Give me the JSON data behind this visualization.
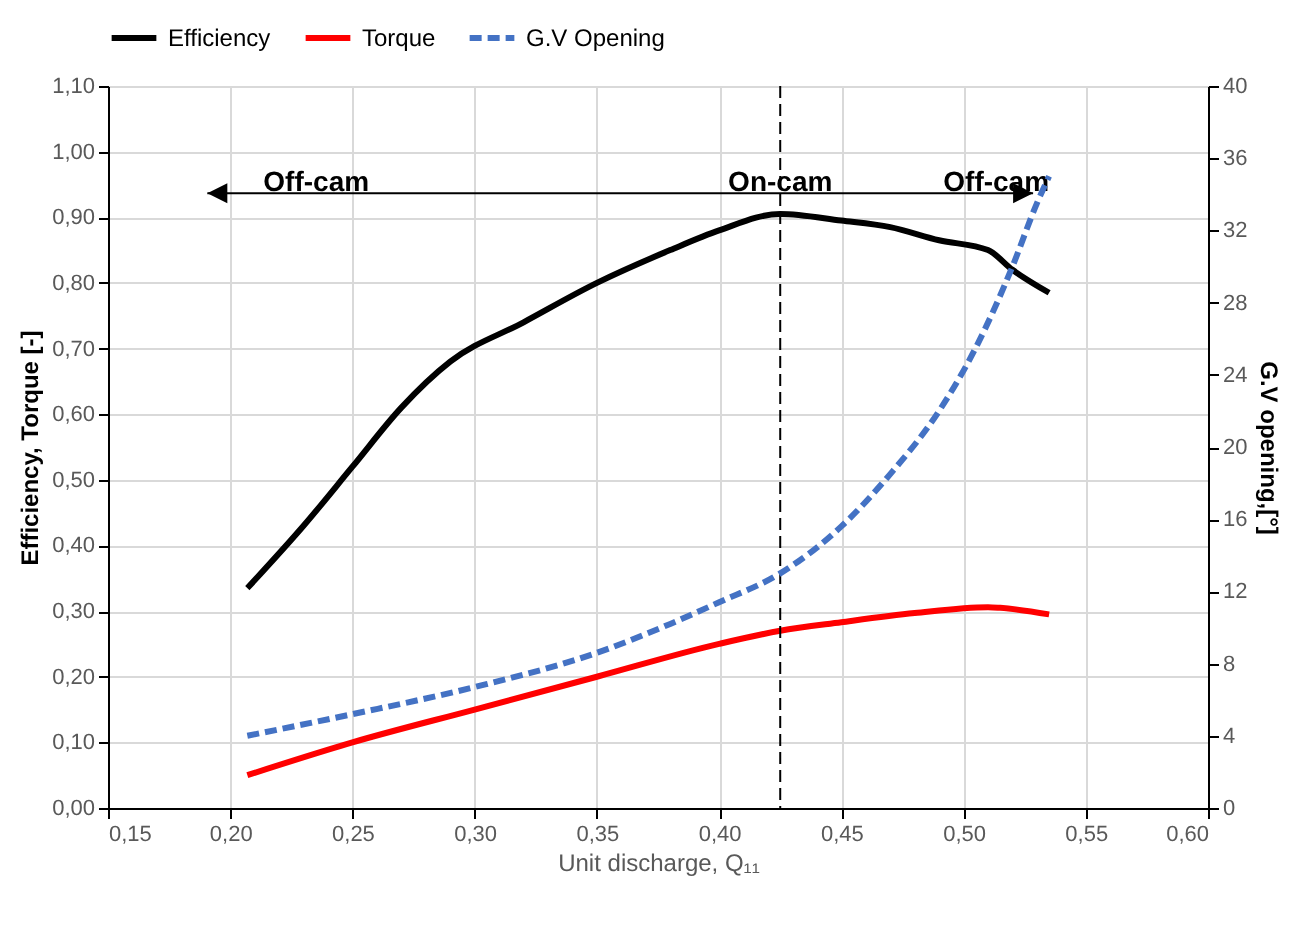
{
  "chart_data": {
    "type": "line",
    "xlabel": "Unit discharge, Q₁₁",
    "ylabel": "Efficiency, Torque  [-]",
    "y2label": "G.V opening,[°]",
    "xlim": [
      0.15,
      0.6
    ],
    "xticks": [
      {
        "value": 0.15,
        "label": "0,15"
      },
      {
        "value": 0.2,
        "label": "0,20"
      },
      {
        "value": 0.25,
        "label": "0,25"
      },
      {
        "value": 0.3,
        "label": "0,30"
      },
      {
        "value": 0.35,
        "label": "0,35"
      },
      {
        "value": 0.4,
        "label": "0,40"
      },
      {
        "value": 0.45,
        "label": "0,45"
      },
      {
        "value": 0.5,
        "label": "0,50"
      },
      {
        "value": 0.55,
        "label": "0,55"
      },
      {
        "value": 0.6,
        "label": "0,60"
      }
    ],
    "ylim": [
      0,
      1.1
    ],
    "yticks": [
      {
        "value": 0,
        "label": "0,00"
      },
      {
        "value": 0.1,
        "label": "0,10"
      },
      {
        "value": 0.2,
        "label": "0,20"
      },
      {
        "value": 0.3,
        "label": "0,30"
      },
      {
        "value": 0.4,
        "label": "0,40"
      },
      {
        "value": 0.5,
        "label": "0,50"
      },
      {
        "value": 0.6,
        "label": "0,60"
      },
      {
        "value": 0.7,
        "label": "0,70"
      },
      {
        "value": 0.8,
        "label": "0,80"
      },
      {
        "value": 0.9,
        "label": "0,90"
      },
      {
        "value": 1,
        "label": "1,00"
      },
      {
        "value": 1.1,
        "label": "1,10"
      }
    ],
    "y2lim": [
      0,
      40
    ],
    "y2ticks": [
      0,
      4,
      8,
      12,
      16,
      20,
      24,
      28,
      32,
      36,
      40
    ],
    "grid": true,
    "legend": "top",
    "marker": "none",
    "series": [
      {
        "name": "Efficiency",
        "color": "#000000",
        "line_style": "solid",
        "x": [
          0.207,
          0.23,
          0.25,
          0.27,
          0.29,
          0.32,
          0.35,
          0.38,
          0.4,
          0.425,
          0.45,
          0.47,
          0.49,
          0.51,
          0.52,
          0.535
        ],
        "values": [
          0.335,
          0.43,
          0.52,
          0.61,
          0.68,
          0.74,
          0.8,
          0.85,
          0.88,
          0.905,
          0.895,
          0.885,
          0.865,
          0.85,
          0.82,
          0.785
        ]
      },
      {
        "name": "Torque",
        "color": "#ff0000",
        "line_style": "solid",
        "x": [
          0.207,
          0.25,
          0.3,
          0.35,
          0.4,
          0.425,
          0.45,
          0.48,
          0.51,
          0.515,
          0.535
        ],
        "values": [
          0.05,
          0.1,
          0.15,
          0.2,
          0.25,
          0.27,
          0.283,
          0.297,
          0.306,
          0.305,
          0.295
        ]
      },
      {
        "name": "G.V Opening",
        "color": "#4472c4",
        "line_style": "dashed",
        "axis": "y2",
        "x": [
          0.207,
          0.25,
          0.3,
          0.35,
          0.38,
          0.4,
          0.425,
          0.45,
          0.47,
          0.49,
          0.505,
          0.52,
          0.53,
          0.535
        ],
        "values": [
          4,
          5.2,
          6.7,
          8.6,
          10.2,
          11.4,
          13,
          15.6,
          18.5,
          22,
          25.5,
          30,
          33.5,
          35
        ]
      }
    ],
    "ref_lines": [
      {
        "axis": "x",
        "value": 0.425,
        "line_style": "dashed",
        "color": "#000000"
      }
    ],
    "annotations": [
      "Off-cam",
      "On-cam",
      "Off-cam"
    ]
  }
}
